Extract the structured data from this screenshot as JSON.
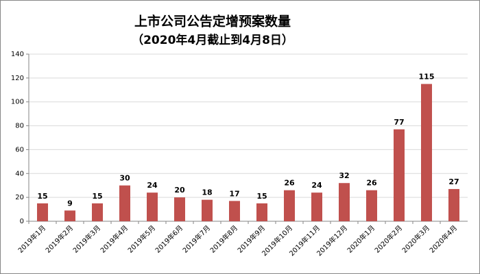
{
  "chart_data": {
    "type": "bar",
    "title": "上市公司公告定增预案数量",
    "subtitle": "（2020年4月截止到4月8日）",
    "categories": [
      "2019年1月",
      "2019年2月",
      "2019年3月",
      "2019年4月",
      "2019年5月",
      "2019年6月",
      "2019年7月",
      "2019年8月",
      "2019年9月",
      "2019年10月",
      "2019年11月",
      "2019年12月",
      "2020年1月",
      "2020年2月",
      "2020年3月",
      "2020年4月"
    ],
    "values": [
      15,
      9,
      15,
      30,
      24,
      20,
      18,
      17,
      15,
      26,
      24,
      32,
      26,
      77,
      115,
      27
    ],
    "color": "#c0504d",
    "ylim": [
      0,
      140
    ],
    "yticks": [
      0,
      20,
      40,
      60,
      80,
      100,
      120,
      140
    ],
    "grid": true
  }
}
